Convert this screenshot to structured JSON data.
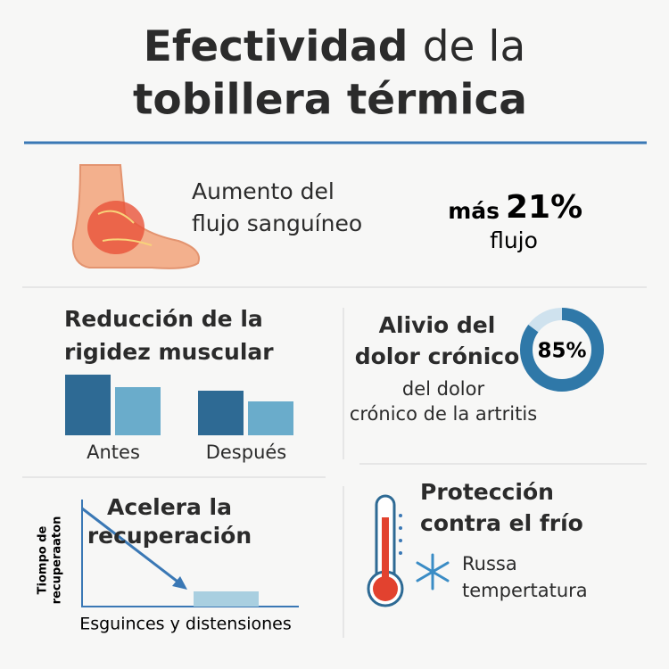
{
  "header": {
    "title_bold": "Efectividad",
    "title_rest": "de la",
    "title_line2": "tobillera térmica"
  },
  "blood_flow": {
    "title_lines": [
      "Aumento del",
      "flujo sanguíneo"
    ],
    "prefix": "más",
    "value": {
      "value": 21,
      "label": "21%"
    },
    "unit": "flujo"
  },
  "stiffness": {
    "title_lines": [
      "Reducción de la",
      "rigidez muscular"
    ],
    "groups": [
      {
        "name": "Antes",
        "values": [
          68,
          54
        ]
      },
      {
        "name": "Después",
        "values": [
          50,
          38
        ]
      }
    ],
    "colors": [
      "#2e6a94",
      "#6aaccb"
    ]
  },
  "pain": {
    "title_lines": [
      "Alivio del",
      "dolor crónico"
    ],
    "percent": {
      "value": 85,
      "label": "85%"
    },
    "caption_lines": [
      "del dolor",
      "crónico de la artritis"
    ]
  },
  "recovery": {
    "title_lines": [
      "Acelera la",
      "recuperación"
    ],
    "y_label_lines": [
      "Tiompo de",
      "recuperaaton"
    ],
    "x_label": "Esguinces y distensiones"
  },
  "cold": {
    "title_lines": [
      "Protección",
      "contra el frío"
    ],
    "caption_lines": [
      "Russa",
      "tempertatura"
    ]
  }
}
